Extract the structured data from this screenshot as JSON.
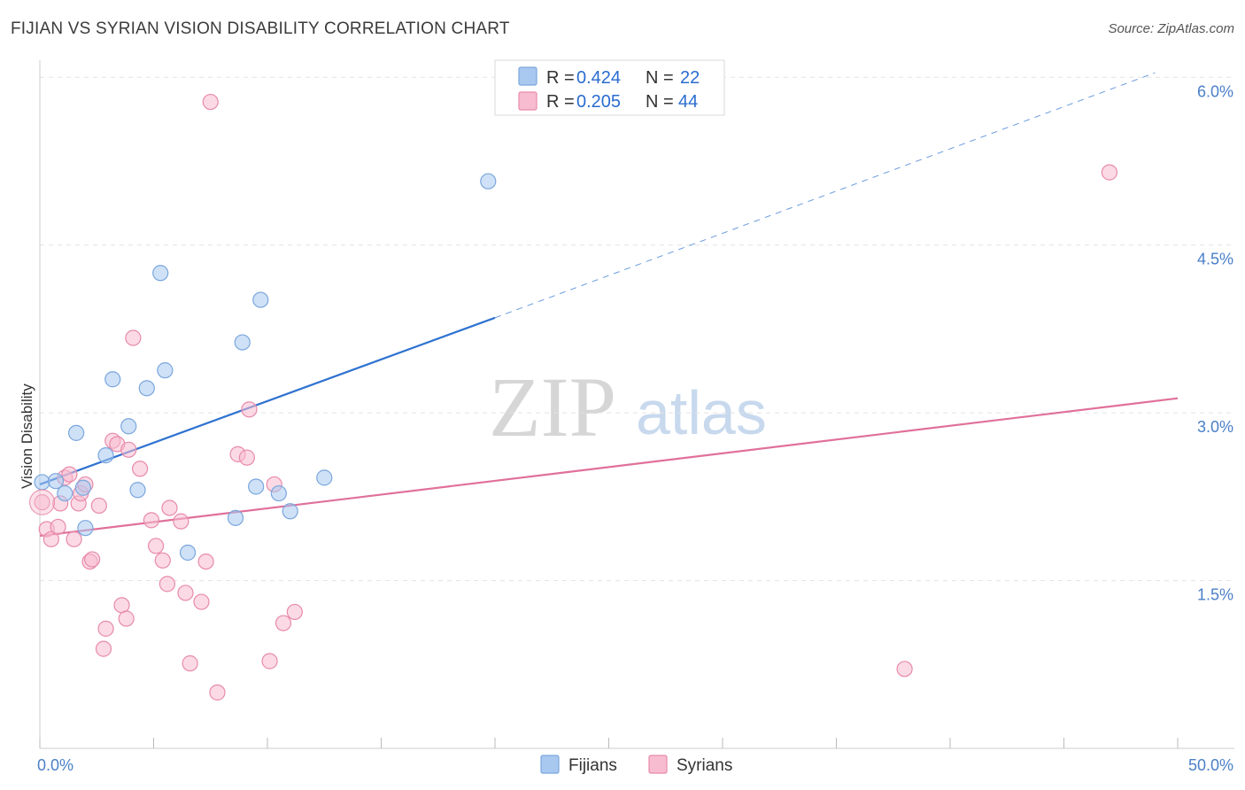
{
  "title": "FIJIAN VS SYRIAN VISION DISABILITY CORRELATION CHART",
  "source": "Source: ZipAtlas.com",
  "watermark": {
    "zip": "ZIP",
    "atlas": "atlas"
  },
  "colors": {
    "fijians_fill": "#a8c8f0",
    "fijians_stroke": "#7aa6dd",
    "fijians_line": "#2f72d0",
    "syrians_fill": "#f7bcd0",
    "syrians_stroke": "#e88aab",
    "syrians_line": "#e0709a",
    "axis_text": "#4a7fc8",
    "grid": "#e3e3e3"
  },
  "legend": {
    "fijians": {
      "r_label": "R =",
      "r_value": "0.424",
      "n_label": "N =",
      "n_value": "22"
    },
    "syrians": {
      "r_label": "R =",
      "r_value": "0.205",
      "n_label": "N =",
      "n_value": "44"
    }
  },
  "bottom_legend": {
    "fijians": "Fijians",
    "syrians": "Syrians"
  },
  "chart_data": {
    "type": "scatter",
    "title": "FIJIAN VS SYRIAN VISION DISABILITY CORRELATION CHART",
    "xlabel": "",
    "ylabel": "Vision Disability",
    "xlim": [
      0,
      50
    ],
    "ylim": [
      0,
      6.2
    ],
    "x_tick_labels": [
      "0.0%",
      "50.0%"
    ],
    "y_ticks": [
      1.5,
      3.0,
      4.5,
      6.0
    ],
    "y_tick_labels": [
      "1.5%",
      "3.0%",
      "4.5%",
      "6.0%"
    ],
    "series": [
      {
        "name": "Fijians",
        "points": [
          [
            0.1,
            2.38
          ],
          [
            0.7,
            2.39
          ],
          [
            1.1,
            2.28
          ],
          [
            1.6,
            2.82
          ],
          [
            1.9,
            2.33
          ],
          [
            2.0,
            1.97
          ],
          [
            2.9,
            2.62
          ],
          [
            3.2,
            3.3
          ],
          [
            3.9,
            2.88
          ],
          [
            4.3,
            2.31
          ],
          [
            4.7,
            3.22
          ],
          [
            5.3,
            4.25
          ],
          [
            5.5,
            3.38
          ],
          [
            6.5,
            1.75
          ],
          [
            8.6,
            2.06
          ],
          [
            8.9,
            3.63
          ],
          [
            9.5,
            2.34
          ],
          [
            9.7,
            4.01
          ],
          [
            10.5,
            2.28
          ],
          [
            11.0,
            2.12
          ],
          [
            12.5,
            2.42
          ],
          [
            19.7,
            5.07
          ]
        ],
        "trend": {
          "x0": 0,
          "y0": 2.36,
          "x1": 20,
          "y1": 3.85,
          "dashed_to_x": 49.0,
          "dashed_to_y": 6.04
        }
      },
      {
        "name": "Syrians",
        "points": [
          [
            0.1,
            2.2
          ],
          [
            0.3,
            1.96
          ],
          [
            0.5,
            1.87
          ],
          [
            0.8,
            1.98
          ],
          [
            0.9,
            2.19
          ],
          [
            1.1,
            2.42
          ],
          [
            1.3,
            2.45
          ],
          [
            1.5,
            1.87
          ],
          [
            1.7,
            2.19
          ],
          [
            1.8,
            2.28
          ],
          [
            2.0,
            2.36
          ],
          [
            2.2,
            1.67
          ],
          [
            2.3,
            1.69
          ],
          [
            2.6,
            2.17
          ],
          [
            2.8,
            0.89
          ],
          [
            2.9,
            1.07
          ],
          [
            3.2,
            2.75
          ],
          [
            3.4,
            2.72
          ],
          [
            3.6,
            1.28
          ],
          [
            3.8,
            1.16
          ],
          [
            3.9,
            2.67
          ],
          [
            4.1,
            3.67
          ],
          [
            4.4,
            2.5
          ],
          [
            4.9,
            2.04
          ],
          [
            5.1,
            1.81
          ],
          [
            5.4,
            1.68
          ],
          [
            5.6,
            1.47
          ],
          [
            5.7,
            2.15
          ],
          [
            6.2,
            2.03
          ],
          [
            6.4,
            1.39
          ],
          [
            6.6,
            0.76
          ],
          [
            7.1,
            1.31
          ],
          [
            7.3,
            1.67
          ],
          [
            7.5,
            5.78
          ],
          [
            7.8,
            0.5
          ],
          [
            8.7,
            2.63
          ],
          [
            9.1,
            2.6
          ],
          [
            9.2,
            3.03
          ],
          [
            10.1,
            0.78
          ],
          [
            10.3,
            2.36
          ],
          [
            10.7,
            1.12
          ],
          [
            11.2,
            1.22
          ],
          [
            38.0,
            0.71
          ],
          [
            47.0,
            5.15
          ]
        ],
        "trend": {
          "x0": 0,
          "y0": 1.9,
          "x1": 50,
          "y1": 3.13
        }
      }
    ]
  }
}
